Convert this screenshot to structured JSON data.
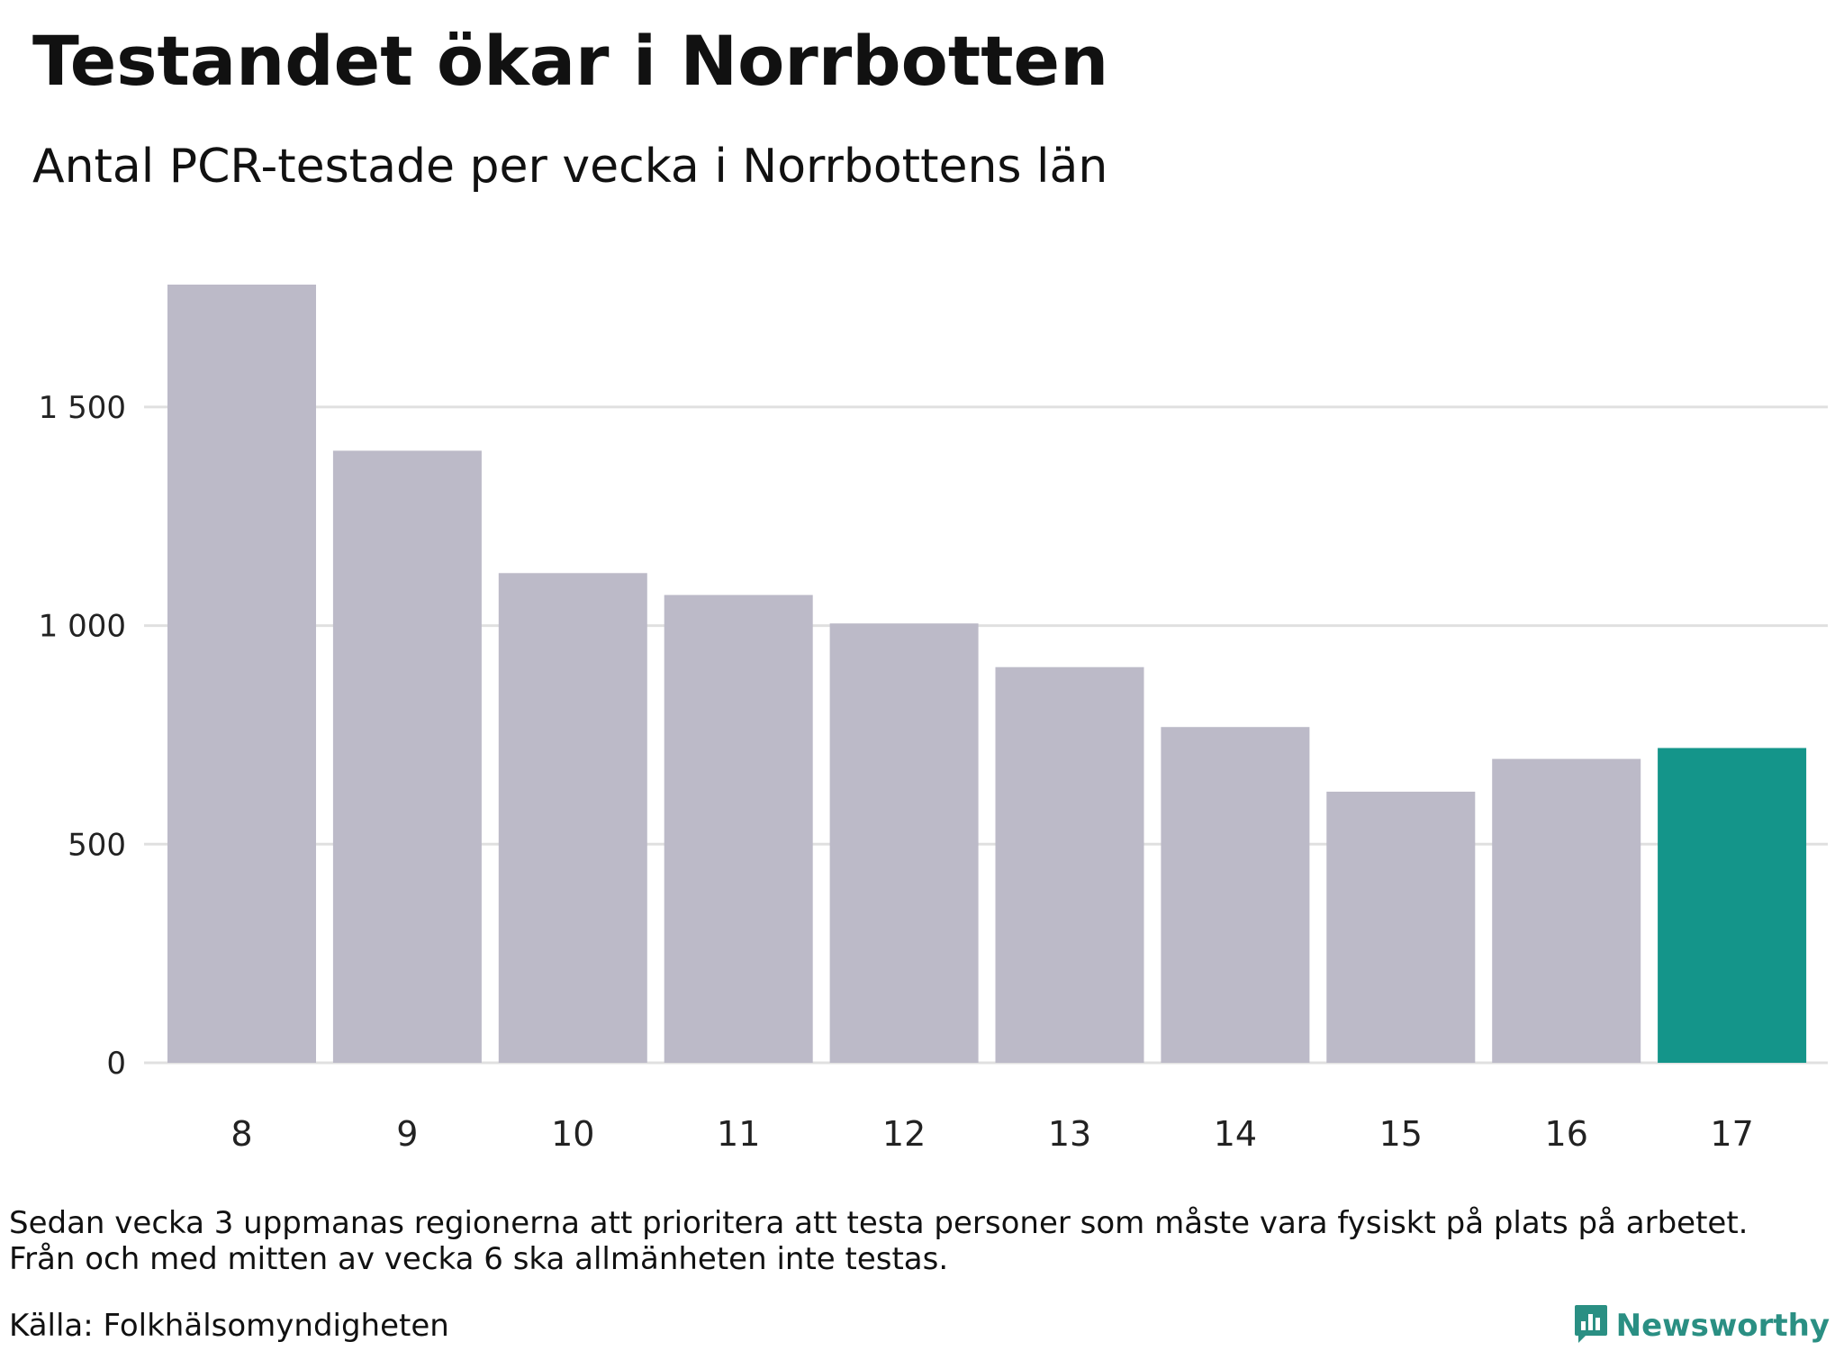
{
  "header": {
    "title": "Testandet ökar i Norrbotten",
    "subtitle": "Antal PCR-testade per vecka i Norrbottens län"
  },
  "chart_data": {
    "type": "bar",
    "categories": [
      "8",
      "9",
      "10",
      "11",
      "12",
      "13",
      "14",
      "15",
      "16",
      "17"
    ],
    "values": [
      1780,
      1400,
      1120,
      1070,
      1005,
      905,
      768,
      620,
      695,
      720
    ],
    "ylim": [
      0,
      1850
    ],
    "yticks": [
      0,
      500,
      1000,
      1500
    ],
    "ytick_labels": [
      "0",
      "500",
      "1 000",
      "1 500"
    ],
    "xlabel": "",
    "ylabel": "",
    "grid": true,
    "legend": false,
    "colors": {
      "default_bar": "#bcbac8",
      "highlight_bar": "#14958a",
      "gridline": "#e0e0e0"
    },
    "highlight_index": 9
  },
  "footer": {
    "note_line1": "Sedan vecka 3 uppmanas regionerna att prioritera att testa personer som måste vara fysiskt på plats på arbetet.",
    "note_line2": "Från och med mitten av vecka 6 ska allmänheten inte testas.",
    "source": "Källa: Folkhälsomyndigheten",
    "brand": "Newsworthy",
    "brand_color": "#2a8f83",
    "brand_icon": "bar-chart-speech-bubble-icon"
  }
}
